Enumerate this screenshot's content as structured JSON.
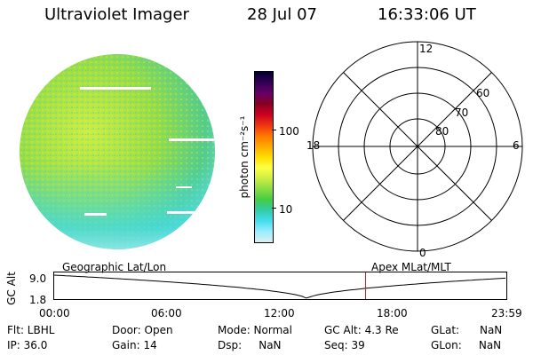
{
  "header": {
    "title": "Ultraviolet Imager",
    "date": "28 Jul 07",
    "time": "16:33:06 UT"
  },
  "colorbar": {
    "label": "photon cm⁻²s⁻¹",
    "ticks": [
      "100",
      "10"
    ],
    "colors": [
      "#000033",
      "#330055",
      "#660066",
      "#880022",
      "#cc0022",
      "#ee3311",
      "#ff7700",
      "#ffaa00",
      "#ffdd00",
      "#ffff44",
      "#ccee44",
      "#88dd44",
      "#44cc44",
      "#33ccaa",
      "#44ddee",
      "#99eeff",
      "#ddeeee"
    ]
  },
  "polar_plot": {
    "labels": {
      "top": "12",
      "right": "6",
      "bottom": "0",
      "left": "18"
    },
    "rings": [
      "60",
      "70",
      "80"
    ]
  },
  "timeline": {
    "left_label": "Geographic Lat/Lon",
    "right_label": "Apex MLat/MLT",
    "y_axis_label": "GC Alt",
    "y_top": "9.0",
    "y_bottom": "1.8",
    "x_ticks": [
      "00:00",
      "06:00",
      "12:00",
      "18:00",
      "23:59"
    ],
    "current_time_fraction": 0.69
  },
  "info": {
    "flt": "Flt: LBHL",
    "ip": "IP: 36.0",
    "door": "Door: Open",
    "gain": "Gain: 14",
    "mode": "Mode: Normal",
    "dsp": "Dsp:     NaN",
    "gc_alt": "GC Alt: 4.3 Re",
    "seq": "Seq: 39",
    "glat": "GLat:      NaN",
    "glon": "GLon:     NaN"
  }
}
